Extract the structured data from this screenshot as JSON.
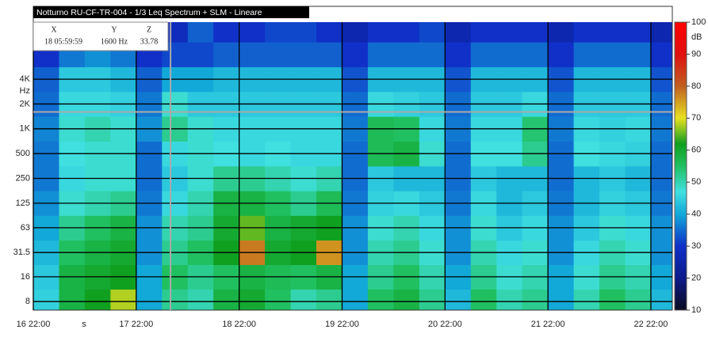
{
  "chart_data": {
    "type": "heatmap",
    "title": "Notturno RU-CF-TR-004 - 1/3 Leq Spectrum + SLM - Lineare",
    "x_label": "s",
    "y_label": "Hz",
    "z_label": "dB",
    "x": [
      0,
      6,
      12,
      18,
      24,
      30,
      36,
      42,
      48,
      54,
      60,
      66,
      72,
      78,
      84,
      90,
      96,
      102,
      108,
      114,
      120,
      126,
      132,
      138,
      144
    ],
    "y": [
      8,
      16,
      31.5,
      63,
      125,
      250,
      500,
      1000,
      2000,
      4000,
      8000,
      16000
    ],
    "z": [
      [
        45,
        58,
        62,
        68,
        40,
        52,
        50,
        58,
        60,
        55,
        50,
        52,
        40,
        55,
        58,
        52,
        42,
        55,
        50,
        52,
        40,
        50,
        55,
        52,
        42
      ],
      [
        44,
        58,
        60,
        62,
        40,
        55,
        52,
        55,
        58,
        56,
        55,
        58,
        40,
        52,
        55,
        50,
        40,
        52,
        48,
        50,
        40,
        48,
        52,
        50,
        40
      ],
      [
        42,
        55,
        58,
        60,
        38,
        52,
        55,
        62,
        78,
        60,
        62,
        76,
        38,
        50,
        52,
        48,
        38,
        50,
        46,
        48,
        38,
        46,
        50,
        48,
        38
      ],
      [
        40,
        52,
        55,
        58,
        38,
        50,
        52,
        60,
        65,
        58,
        60,
        62,
        38,
        48,
        50,
        46,
        38,
        48,
        44,
        46,
        38,
        44,
        48,
        46,
        38
      ],
      [
        38,
        48,
        50,
        52,
        36,
        46,
        50,
        58,
        58,
        55,
        52,
        56,
        36,
        45,
        46,
        44,
        36,
        46,
        42,
        44,
        36,
        42,
        45,
        44,
        36
      ],
      [
        36,
        46,
        48,
        48,
        35,
        44,
        48,
        52,
        52,
        50,
        48,
        50,
        35,
        44,
        42,
        42,
        35,
        44,
        42,
        42,
        35,
        42,
        44,
        42,
        35
      ],
      [
        36,
        47,
        48,
        48,
        35,
        46,
        48,
        47,
        46,
        47,
        46,
        46,
        35,
        56,
        58,
        48,
        35,
        47,
        47,
        52,
        35,
        47,
        46,
        45,
        35
      ],
      [
        37,
        48,
        50,
        48,
        38,
        52,
        48,
        46,
        46,
        46,
        46,
        46,
        36,
        56,
        55,
        46,
        36,
        46,
        46,
        54,
        36,
        46,
        45,
        46,
        36
      ],
      [
        35,
        46,
        46,
        45,
        36,
        48,
        44,
        44,
        44,
        44,
        44,
        44,
        35,
        46,
        45,
        44,
        35,
        44,
        44,
        46,
        35,
        44,
        44,
        44,
        35
      ],
      [
        34,
        44,
        44,
        42,
        34,
        40,
        40,
        42,
        42,
        42,
        42,
        42,
        33,
        42,
        42,
        42,
        33,
        42,
        42,
        42,
        33,
        42,
        42,
        42,
        33
      ],
      [
        30,
        36,
        38,
        36,
        30,
        32,
        32,
        34,
        34,
        34,
        34,
        34,
        30,
        35,
        35,
        35,
        30,
        35,
        35,
        35,
        30,
        35,
        35,
        35,
        30
      ],
      [
        26,
        30,
        30,
        28,
        26,
        28,
        34,
        30,
        30,
        32,
        32,
        30,
        26,
        30,
        30,
        32,
        26,
        30,
        30,
        30,
        26,
        30,
        30,
        30,
        26
      ]
    ],
    "xlim": [
      0,
      149
    ],
    "xticks": [
      {
        "value": 0,
        "label": "16 22:00"
      },
      {
        "value": 24,
        "label": "17 22:00"
      },
      {
        "value": 48,
        "label": "18 22:00"
      },
      {
        "value": 72,
        "label": "19 22:00"
      },
      {
        "value": 96,
        "label": "20 22:00"
      },
      {
        "value": 120,
        "label": "21 22:00"
      },
      {
        "value": 144,
        "label": "22 22:00"
      }
    ],
    "ylim": [
      6.3,
      19700
    ],
    "log_y": true,
    "yticks": [
      8,
      16,
      31.5,
      63,
      125,
      250,
      500,
      {
        "value": 1000,
        "label": "1K"
      },
      {
        "value": 2000,
        "label": "2K"
      },
      {
        "value": 4000,
        "label": "4K"
      }
    ],
    "zlim": [
      10,
      100
    ],
    "zticks": [
      10,
      20,
      30,
      40,
      50,
      60,
      70,
      80,
      90,
      100
    ],
    "colorscale": [
      [
        10,
        "#0a0a20"
      ],
      [
        20,
        "#0c1a8a"
      ],
      [
        30,
        "#1030c8"
      ],
      [
        40,
        "#12a8d8"
      ],
      [
        47,
        "#40e0e0"
      ],
      [
        55,
        "#20c060"
      ],
      [
        62,
        "#10a020"
      ],
      [
        70,
        "#e8e020"
      ],
      [
        80,
        "#c06020"
      ],
      [
        90,
        "#e01010"
      ],
      [
        100,
        "#ff0000"
      ]
    ],
    "grid": true,
    "cursor": {
      "x": 32,
      "y": 1600,
      "x_head": "X",
      "x_text": "18 05:59:59",
      "y_head": "Y",
      "y_text": "1600 Hz",
      "z_head": "Z",
      "z_value": 33.78
    }
  }
}
